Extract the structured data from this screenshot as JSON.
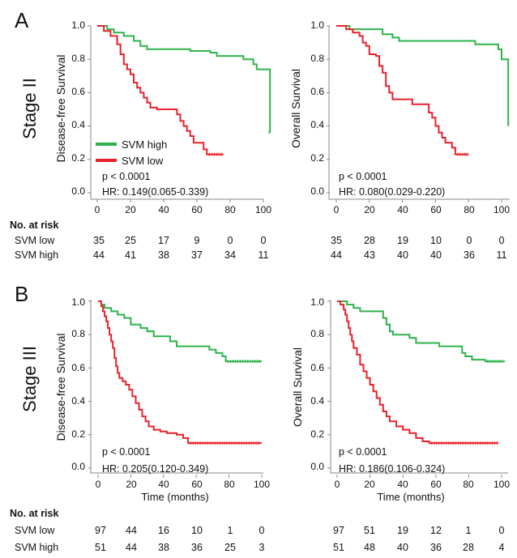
{
  "chart_data": [
    {
      "type": "line",
      "panel_label": "A",
      "stage_label": "Stage II",
      "ylabel": "Disease-free Survival",
      "xlabel": "",
      "xlim": [
        0,
        104
      ],
      "ylim": [
        0,
        1
      ],
      "x_ticks": [
        "0",
        "20",
        "40",
        "60",
        "80",
        "100"
      ],
      "y_ticks": [
        "0.0",
        "0.2",
        "0.4",
        "0.6",
        "0.8",
        "1.0"
      ],
      "p_value": "p < 0.0001",
      "hr": "HR: 0.149(0.065-0.339)",
      "legend": [
        "SVM high",
        "SVM low"
      ],
      "series": [
        {
          "name": "SVM high",
          "color": "#2db34a",
          "points": [
            [
              0,
              1.0
            ],
            [
              6,
              0.98
            ],
            [
              10,
              0.96
            ],
            [
              16,
              0.94
            ],
            [
              22,
              0.91
            ],
            [
              26,
              0.88
            ],
            [
              30,
              0.86
            ],
            [
              50,
              0.86
            ],
            [
              56,
              0.85
            ],
            [
              68,
              0.84
            ],
            [
              72,
              0.82
            ],
            [
              86,
              0.82
            ],
            [
              88,
              0.8
            ],
            [
              94,
              0.77
            ],
            [
              96,
              0.74
            ],
            [
              102,
              0.74
            ],
            [
              104,
              0.36
            ]
          ]
        },
        {
          "name": "SVM low",
          "color": "#e8222b",
          "points": [
            [
              0,
              1.0
            ],
            [
              4,
              0.97
            ],
            [
              8,
              0.94
            ],
            [
              12,
              0.89
            ],
            [
              14,
              0.83
            ],
            [
              16,
              0.77
            ],
            [
              18,
              0.74
            ],
            [
              20,
              0.71
            ],
            [
              22,
              0.66
            ],
            [
              24,
              0.63
            ],
            [
              26,
              0.6
            ],
            [
              28,
              0.57
            ],
            [
              30,
              0.54
            ],
            [
              32,
              0.51
            ],
            [
              36,
              0.5
            ],
            [
              46,
              0.5
            ],
            [
              48,
              0.47
            ],
            [
              50,
              0.43
            ],
            [
              52,
              0.4
            ],
            [
              54,
              0.37
            ],
            [
              56,
              0.34
            ],
            [
              58,
              0.3
            ],
            [
              62,
              0.3
            ],
            [
              64,
              0.26
            ],
            [
              66,
              0.23
            ],
            [
              76,
              0.23
            ]
          ]
        }
      ]
    },
    {
      "type": "line",
      "ylabel": "Overall Survival",
      "xlabel": "",
      "xlim": [
        0,
        104
      ],
      "ylim": [
        0,
        1
      ],
      "x_ticks": [
        "0",
        "20",
        "40",
        "60",
        "80",
        "100"
      ],
      "y_ticks": [
        "0.0",
        "0.2",
        "0.4",
        "0.6",
        "0.8",
        "1.0"
      ],
      "p_value": "p < 0.0001",
      "hr": "HR: 0.080(0.029-0.220)",
      "series": [
        {
          "name": "SVM high",
          "color": "#2db34a",
          "points": [
            [
              0,
              1.0
            ],
            [
              8,
              0.98
            ],
            [
              26,
              0.98
            ],
            [
              28,
              0.95
            ],
            [
              34,
              0.93
            ],
            [
              38,
              0.91
            ],
            [
              82,
              0.91
            ],
            [
              84,
              0.89
            ],
            [
              96,
              0.89
            ],
            [
              98,
              0.86
            ],
            [
              100,
              0.8
            ],
            [
              104,
              0.8
            ],
            [
              104,
              0.4
            ]
          ]
        },
        {
          "name": "SVM low",
          "color": "#e8222b",
          "points": [
            [
              0,
              1.0
            ],
            [
              6,
              0.98
            ],
            [
              10,
              0.96
            ],
            [
              14,
              0.94
            ],
            [
              16,
              0.9
            ],
            [
              18,
              0.88
            ],
            [
              20,
              0.83
            ],
            [
              24,
              0.82
            ],
            [
              26,
              0.76
            ],
            [
              28,
              0.72
            ],
            [
              30,
              0.64
            ],
            [
              32,
              0.6
            ],
            [
              34,
              0.56
            ],
            [
              44,
              0.56
            ],
            [
              46,
              0.53
            ],
            [
              54,
              0.53
            ],
            [
              56,
              0.48
            ],
            [
              58,
              0.45
            ],
            [
              60,
              0.4
            ],
            [
              62,
              0.36
            ],
            [
              64,
              0.33
            ],
            [
              66,
              0.3
            ],
            [
              70,
              0.27
            ],
            [
              72,
              0.23
            ],
            [
              80,
              0.23
            ]
          ]
        }
      ]
    },
    {
      "type": "line",
      "panel_label": "B",
      "stage_label": "Stage III",
      "ylabel": "Disease-free Survival",
      "xlabel": "Time (months)",
      "xlim": [
        0,
        104
      ],
      "ylim": [
        0,
        1
      ],
      "x_ticks": [
        "0",
        "20",
        "40",
        "60",
        "80",
        "100"
      ],
      "y_ticks": [
        "0.0",
        "0.2",
        "0.4",
        "0.6",
        "0.8",
        "1.0"
      ],
      "p_value": "p < 0.0001",
      "hr": "HR: 0.205(0.120-0.349)",
      "series": [
        {
          "name": "SVM high",
          "color": "#2db34a",
          "points": [
            [
              0,
              1.0
            ],
            [
              2,
              0.98
            ],
            [
              4,
              0.96
            ],
            [
              8,
              0.94
            ],
            [
              12,
              0.92
            ],
            [
              16,
              0.9
            ],
            [
              20,
              0.86
            ],
            [
              26,
              0.84
            ],
            [
              30,
              0.82
            ],
            [
              34,
              0.79
            ],
            [
              42,
              0.79
            ],
            [
              44,
              0.76
            ],
            [
              48,
              0.73
            ],
            [
              66,
              0.73
            ],
            [
              68,
              0.71
            ],
            [
              72,
              0.69
            ],
            [
              76,
              0.67
            ],
            [
              78,
              0.64
            ],
            [
              100,
              0.64
            ]
          ]
        },
        {
          "name": "SVM low",
          "color": "#e8222b",
          "points": [
            [
              0,
              1.0
            ],
            [
              2,
              0.97
            ],
            [
              3,
              0.94
            ],
            [
              4,
              0.91
            ],
            [
              5,
              0.88
            ],
            [
              6,
              0.84
            ],
            [
              7,
              0.8
            ],
            [
              8,
              0.76
            ],
            [
              9,
              0.72
            ],
            [
              10,
              0.66
            ],
            [
              11,
              0.61
            ],
            [
              12,
              0.57
            ],
            [
              13,
              0.54
            ],
            [
              15,
              0.52
            ],
            [
              17,
              0.5
            ],
            [
              19,
              0.47
            ],
            [
              21,
              0.43
            ],
            [
              23,
              0.39
            ],
            [
              25,
              0.35
            ],
            [
              27,
              0.31
            ],
            [
              29,
              0.28
            ],
            [
              31,
              0.25
            ],
            [
              34,
              0.23
            ],
            [
              38,
              0.22
            ],
            [
              42,
              0.21
            ],
            [
              48,
              0.2
            ],
            [
              52,
              0.18
            ],
            [
              55,
              0.15
            ],
            [
              100,
              0.15
            ]
          ]
        }
      ]
    },
    {
      "type": "line",
      "ylabel": "Overall Survival",
      "xlabel": "Time (months)",
      "xlim": [
        0,
        104
      ],
      "ylim": [
        0,
        1
      ],
      "x_ticks": [
        "0",
        "20",
        "40",
        "60",
        "80",
        "100"
      ],
      "y_ticks": [
        "0.0",
        "0.2",
        "0.4",
        "0.6",
        "0.8",
        "1.0"
      ],
      "p_value": "p < 0.0001",
      "hr": "HR: 0.186(0.106-0.324)",
      "series": [
        {
          "name": "SVM high",
          "color": "#2db34a",
          "points": [
            [
              0,
              1.0
            ],
            [
              6,
              0.98
            ],
            [
              10,
              0.96
            ],
            [
              14,
              0.94
            ],
            [
              26,
              0.94
            ],
            [
              28,
              0.9
            ],
            [
              30,
              0.86
            ],
            [
              32,
              0.82
            ],
            [
              34,
              0.8
            ],
            [
              42,
              0.8
            ],
            [
              44,
              0.78
            ],
            [
              48,
              0.75
            ],
            [
              60,
              0.75
            ],
            [
              62,
              0.73
            ],
            [
              74,
              0.73
            ],
            [
              76,
              0.69
            ],
            [
              78,
              0.67
            ],
            [
              82,
              0.65
            ],
            [
              88,
              0.65
            ],
            [
              90,
              0.64
            ],
            [
              102,
              0.64
            ]
          ]
        },
        {
          "name": "SVM low",
          "color": "#e8222b",
          "points": [
            [
              0,
              1.0
            ],
            [
              2,
              0.98
            ],
            [
              4,
              0.95
            ],
            [
              5,
              0.92
            ],
            [
              6,
              0.88
            ],
            [
              7,
              0.84
            ],
            [
              8,
              0.8
            ],
            [
              9,
              0.76
            ],
            [
              10,
              0.72
            ],
            [
              12,
              0.68
            ],
            [
              14,
              0.62
            ],
            [
              16,
              0.58
            ],
            [
              18,
              0.54
            ],
            [
              20,
              0.5
            ],
            [
              22,
              0.46
            ],
            [
              24,
              0.42
            ],
            [
              26,
              0.38
            ],
            [
              28,
              0.34
            ],
            [
              30,
              0.31
            ],
            [
              32,
              0.28
            ],
            [
              36,
              0.25
            ],
            [
              40,
              0.23
            ],
            [
              44,
              0.21
            ],
            [
              48,
              0.18
            ],
            [
              52,
              0.16
            ],
            [
              56,
              0.15
            ],
            [
              98,
              0.15
            ]
          ]
        }
      ]
    }
  ],
  "risk_tables": [
    {
      "header": "No. at risk",
      "rows": [
        {
          "label": "SVM low",
          "left": [
            "35",
            "25",
            "17",
            "9",
            "0",
            "0"
          ],
          "right": [
            "35",
            "28",
            "19",
            "10",
            "0",
            "0"
          ]
        },
        {
          "label": "SVM high",
          "left": [
            "44",
            "41",
            "38",
            "37",
            "34",
            "11"
          ],
          "right": [
            "44",
            "43",
            "40",
            "40",
            "36",
            "11"
          ]
        }
      ]
    },
    {
      "header": "No. at risk",
      "rows": [
        {
          "label": "SVM low",
          "left": [
            "97",
            "44",
            "16",
            "10",
            "1",
            "0"
          ],
          "right": [
            "97",
            "51",
            "19",
            "12",
            "1",
            "0"
          ]
        },
        {
          "label": "SVM high",
          "left": [
            "51",
            "44",
            "38",
            "36",
            "25",
            "3"
          ],
          "right": [
            "51",
            "48",
            "40",
            "36",
            "28",
            "4"
          ]
        }
      ]
    }
  ]
}
